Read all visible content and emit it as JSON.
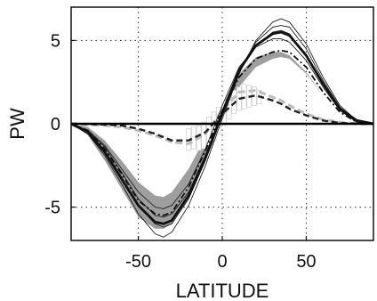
{
  "chart_data": {
    "type": "line",
    "title": "",
    "xlabel": "LATITUDE",
    "ylabel": "PW",
    "xlim": [
      -90,
      90
    ],
    "ylim": [
      -7,
      7
    ],
    "xticks": [
      -50,
      0,
      50
    ],
    "yticks": [
      -5,
      0,
      5
    ],
    "xtick_labels": [
      "-50",
      "0",
      "50"
    ],
    "ytick_labels": [
      "-5",
      "0",
      "5"
    ],
    "grid": true,
    "grid_style": "dotted",
    "x": [
      -90,
      -80,
      -70,
      -60,
      -50,
      -40,
      -35,
      -30,
      -20,
      -10,
      0,
      10,
      20,
      30,
      35,
      40,
      50,
      60,
      70,
      80,
      90
    ],
    "series": [
      {
        "id": "upper-envelope",
        "style": "thin",
        "values": [
          0,
          -0.6,
          -1.9,
          -3.6,
          -5.4,
          -6.6,
          -6.8,
          -6.5,
          -4.9,
          -2.5,
          0.3,
          3.0,
          5.0,
          6.1,
          6.3,
          6.1,
          4.8,
          2.8,
          1.1,
          0.2,
          0
        ]
      },
      {
        "id": "lower-envelope",
        "style": "thin",
        "values": [
          0,
          -0.4,
          -1.3,
          -2.7,
          -4.1,
          -5.0,
          -5.1,
          -4.9,
          -3.6,
          -1.5,
          1.1,
          3.4,
          4.6,
          5.1,
          5.1,
          4.9,
          3.8,
          2.2,
          0.8,
          0.1,
          0
        ]
      },
      {
        "id": "inner-thin-1",
        "style": "thin",
        "values": [
          0,
          -0.5,
          -1.6,
          -3.2,
          -4.9,
          -6.0,
          -6.2,
          -6.0,
          -4.5,
          -2.2,
          0.5,
          3.2,
          4.9,
          5.8,
          5.9,
          5.8,
          4.5,
          2.6,
          1.0,
          0.2,
          0
        ]
      },
      {
        "id": "inner-thin-2",
        "style": "thin",
        "values": [
          0,
          -0.4,
          -1.4,
          -2.9,
          -4.5,
          -5.5,
          -5.6,
          -5.4,
          -4.1,
          -1.9,
          0.8,
          3.3,
          4.7,
          5.5,
          5.6,
          5.4,
          4.1,
          2.4,
          0.9,
          0.2,
          0
        ]
      },
      {
        "id": "shaded-band-upper",
        "style": "band",
        "values": [
          0,
          -0.2,
          -1.0,
          -2.2,
          -3.5,
          -4.3,
          -4.4,
          -4.1,
          -2.7,
          -0.8,
          1.1,
          3.0,
          4.0,
          4.3,
          4.3,
          4.1,
          3.1,
          1.7,
          0.6,
          0.1,
          0
        ]
      },
      {
        "id": "shaded-band-lower",
        "style": "band",
        "values": [
          0,
          -0.7,
          -2.2,
          -3.9,
          -5.6,
          -6.3,
          -6.3,
          -6.0,
          -4.5,
          -2.2,
          0.1,
          2.2,
          3.4,
          3.9,
          4.0,
          3.9,
          3.0,
          1.7,
          0.6,
          0.1,
          0
        ]
      },
      {
        "id": "thick-solid",
        "style": "thick",
        "values": [
          0,
          -0.5,
          -1.7,
          -3.3,
          -4.9,
          -5.9,
          -6.0,
          -5.8,
          -4.3,
          -2.0,
          0.6,
          3.2,
          4.7,
          5.4,
          5.5,
          5.3,
          4.1,
          2.4,
          0.9,
          0.2,
          0
        ]
      },
      {
        "id": "dash-dot",
        "style": "dashdot",
        "values": [
          0,
          -0.4,
          -1.5,
          -3.0,
          -4.6,
          -5.4,
          -5.5,
          -5.3,
          -3.8,
          -1.6,
          0.8,
          2.8,
          3.9,
          4.3,
          4.4,
          4.3,
          3.4,
          1.9,
          0.7,
          0.1,
          0
        ]
      },
      {
        "id": "dashed",
        "style": "dashed",
        "values": [
          0,
          -0.02,
          -0.05,
          -0.1,
          -0.3,
          -0.6,
          -0.8,
          -1.0,
          -1.0,
          -0.5,
          0.6,
          1.5,
          1.7,
          1.4,
          1.2,
          0.9,
          0.5,
          0.2,
          0.05,
          0,
          0
        ]
      },
      {
        "id": "light-dashed",
        "style": "lightdashed",
        "values": [
          0,
          -0.05,
          -0.1,
          -0.2,
          -0.4,
          -0.7,
          -0.9,
          -1.1,
          -1.2,
          -0.6,
          0.8,
          1.9,
          2.0,
          1.6,
          1.4,
          1.1,
          0.6,
          0.25,
          0.1,
          0,
          0
        ]
      },
      {
        "id": "zero-line",
        "style": "zero",
        "values": [
          0,
          0,
          0,
          0,
          0,
          0,
          0,
          0,
          0,
          0,
          0,
          0,
          0,
          0,
          0,
          0,
          0,
          0,
          0,
          0,
          0
        ]
      }
    ],
    "error_bars": {
      "x": [
        -20,
        -17,
        -14,
        -11,
        -8,
        -5,
        -2,
        1,
        4,
        7,
        10,
        13,
        16,
        19,
        22
      ],
      "low": [
        -1.6,
        -1.5,
        -1.6,
        -1.5,
        -1.3,
        -1.0,
        -0.6,
        -0.1,
        0.3,
        0.6,
        0.8,
        0.9,
        1.0,
        1.1,
        1.2
      ],
      "high": [
        -0.3,
        -0.2,
        -0.1,
        0.1,
        0.4,
        0.7,
        1.0,
        1.4,
        1.7,
        2.0,
        2.2,
        2.4,
        2.3,
        2.2,
        2.0
      ]
    }
  }
}
